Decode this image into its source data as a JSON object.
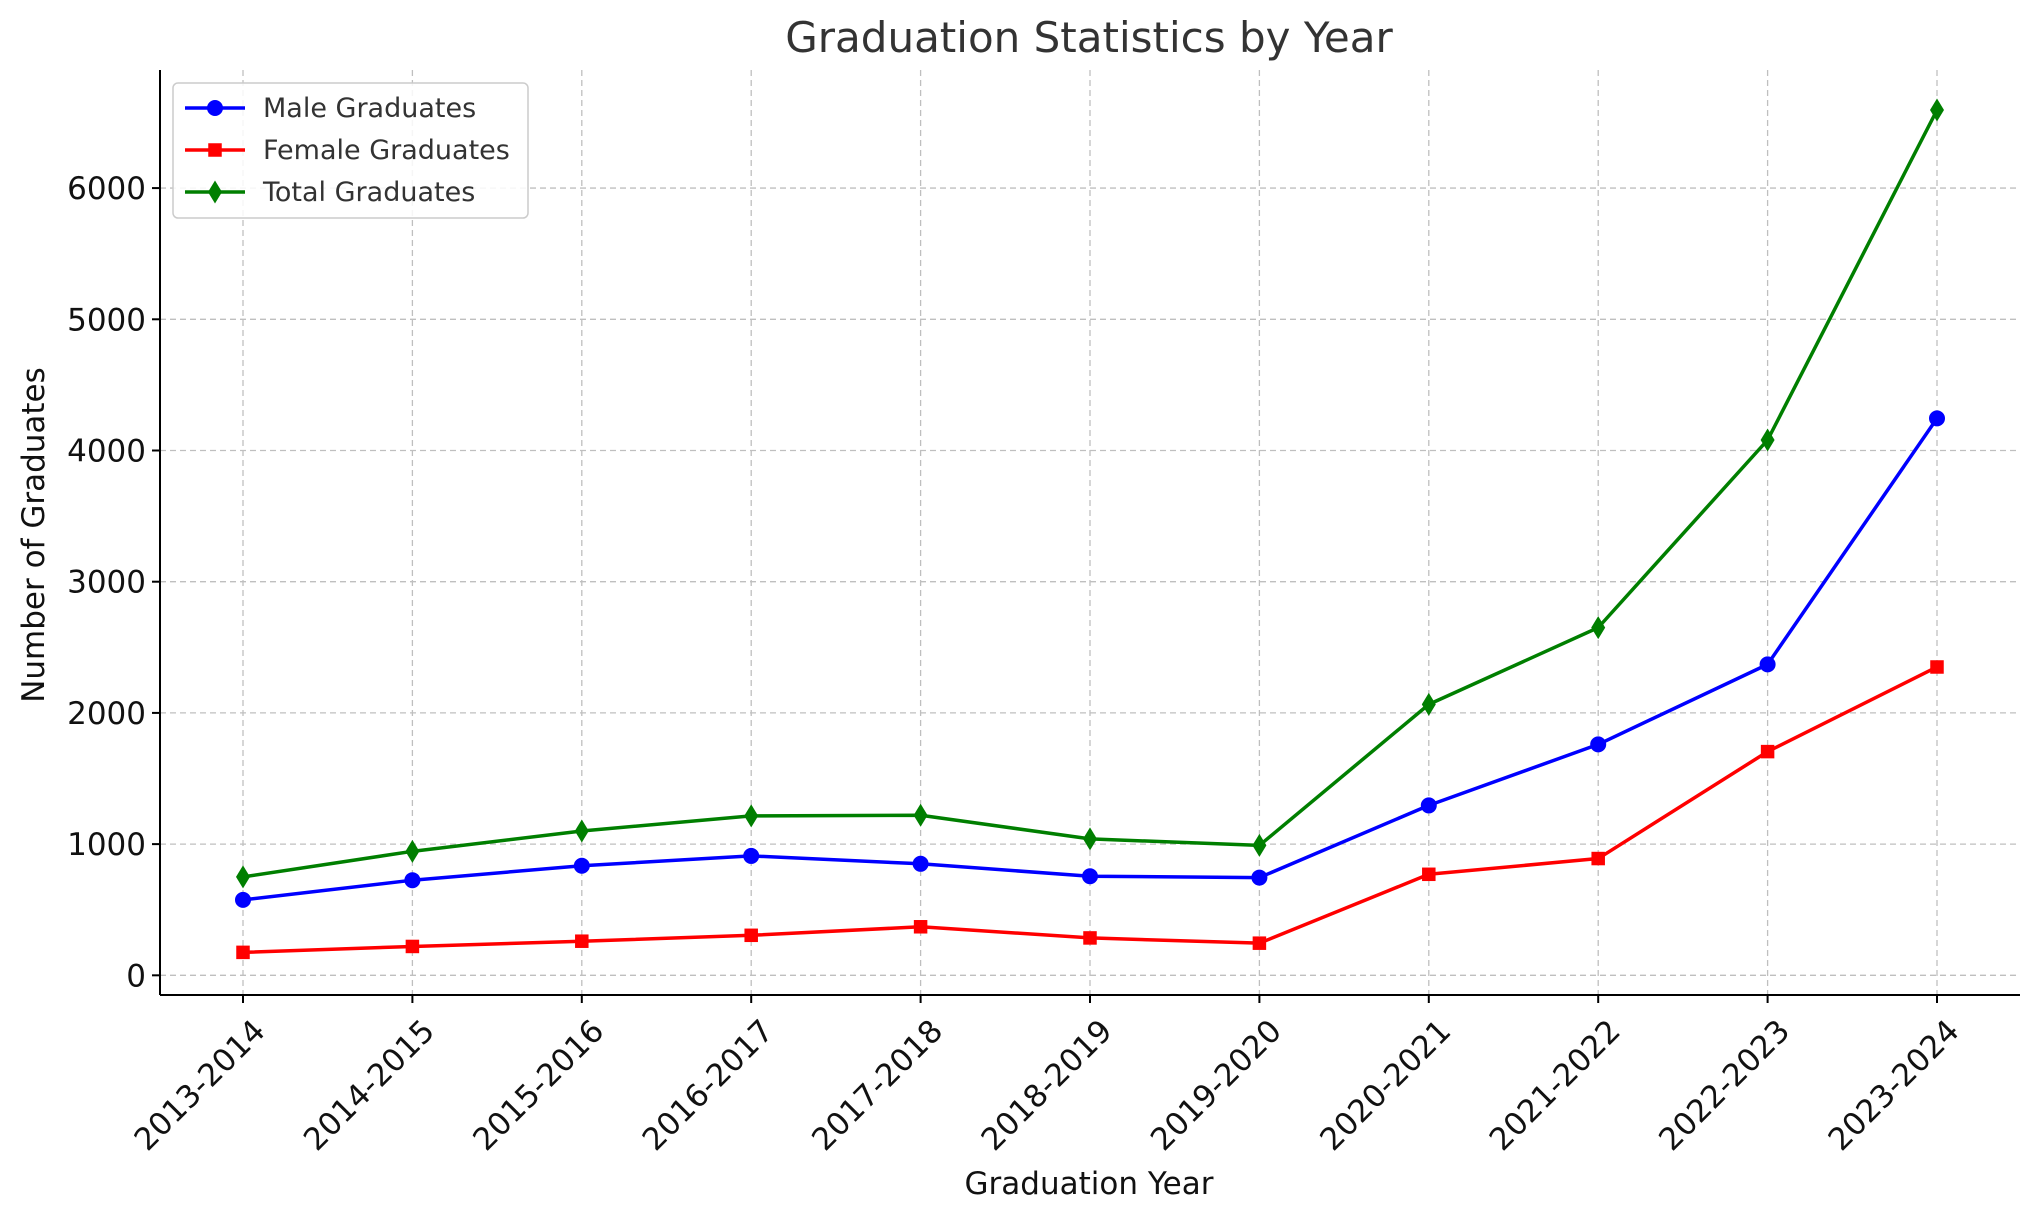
{
  "chart_data": {
    "type": "line",
    "title": "Graduation Statistics by Year",
    "xlabel": "Graduation Year",
    "ylabel": "Number of Graduates",
    "categories": [
      "2013-2014",
      "2014-2015",
      "2015-2016",
      "2016-2017",
      "2017-2018",
      "2018-2019",
      "2019-2020",
      "2020-2021",
      "2021-2022",
      "2022-2023",
      "2023-2024"
    ],
    "series": [
      {
        "name": "Male Graduates",
        "color": "#0000ff",
        "marker": "circle",
        "values": [
          575,
          725,
          835,
          910,
          850,
          755,
          745,
          1295,
          1760,
          2370,
          4245
        ]
      },
      {
        "name": "Female Graduates",
        "color": "#ff0000",
        "marker": "square",
        "values": [
          175,
          220,
          260,
          305,
          370,
          285,
          245,
          770,
          890,
          1705,
          2350
        ]
      },
      {
        "name": "Total Graduates",
        "color": "#007f00",
        "marker": "diamond",
        "values": [
          750,
          945,
          1100,
          1215,
          1220,
          1040,
          990,
          2065,
          2650,
          4080,
          6595
        ]
      }
    ],
    "yticks": [
      0,
      1000,
      2000,
      3000,
      4000,
      5000,
      6000
    ],
    "ylim": [
      -150,
      6900
    ],
    "grid": true,
    "legend_position": "top-left"
  }
}
